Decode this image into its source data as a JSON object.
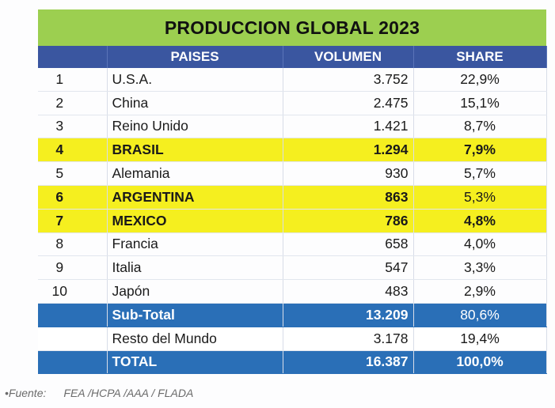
{
  "title": "PRODUCCION GLOBAL 2023",
  "headers": {
    "num": "",
    "pais": "PAISES",
    "volumen": "VOLUMEN",
    "share": "SHARE"
  },
  "rows": [
    {
      "num": "1",
      "pais": "U.S.A.",
      "volumen": "3.752",
      "share": "22,9%"
    },
    {
      "num": "2",
      "pais": "China",
      "volumen": "2.475",
      "share": "15,1%"
    },
    {
      "num": "3",
      "pais": "Reino Unido",
      "volumen": "1.421",
      "share": "8,7%"
    },
    {
      "num": "4",
      "pais": "BRASIL",
      "volumen": "1.294",
      "share": "7,9%"
    },
    {
      "num": "5",
      "pais": "Alemania",
      "volumen": "930",
      "share": "5,7%"
    },
    {
      "num": "6",
      "pais": "ARGENTINA",
      "volumen": "863",
      "share": "5,3%"
    },
    {
      "num": "7",
      "pais": "MEXICO",
      "volumen": "786",
      "share": "4,8%"
    },
    {
      "num": "8",
      "pais": "Francia",
      "volumen": "658",
      "share": "4,0%"
    },
    {
      "num": "9",
      "pais": "Italia",
      "volumen": "547",
      "share": "3,3%"
    },
    {
      "num": "10",
      "pais": "Japón",
      "volumen": "483",
      "share": "2,9%"
    }
  ],
  "subtotal": {
    "label": "Sub-Total",
    "volumen": "13.209",
    "share": "80,6%"
  },
  "resto": {
    "label": "Resto del Mundo",
    "volumen": "3.178",
    "share": "19,4%"
  },
  "total": {
    "label": "TOTAL",
    "volumen": "16.387",
    "share": "100,0%"
  },
  "source": {
    "label": "•Fuente:",
    "text": "FEA /HCPA /AAA / FLADA"
  },
  "colors": {
    "title_bg": "#9ccf50",
    "header_bg": "#3a56a0",
    "highlight": "#f5ef1f",
    "total_bg": "#2a6fb7"
  }
}
